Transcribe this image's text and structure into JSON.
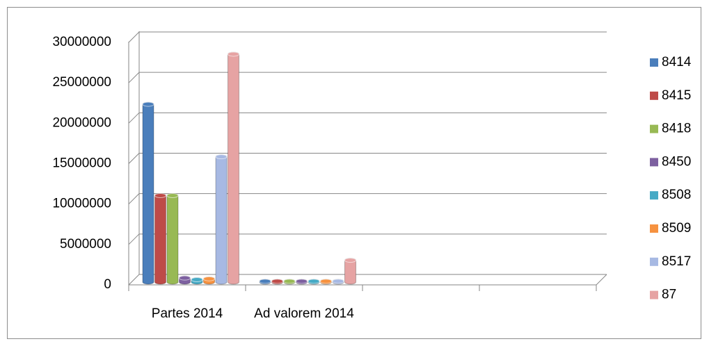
{
  "chart_data": {
    "type": "bar",
    "categories": [
      "Partes 2014",
      "Ad valorem 2014",
      null,
      null
    ],
    "series": [
      {
        "name": "8414",
        "color": "#4a7ebb",
        "values": [
          22000000,
          100000,
          null,
          null
        ]
      },
      {
        "name": "8415",
        "color": "#be4b48",
        "values": [
          10700000,
          100000,
          null,
          null
        ]
      },
      {
        "name": "8418",
        "color": "#98b954",
        "values": [
          10700000,
          100000,
          null,
          null
        ]
      },
      {
        "name": "8450",
        "color": "#7d60a0",
        "values": [
          500000,
          100000,
          null,
          null
        ]
      },
      {
        "name": "8508",
        "color": "#46aac5",
        "values": [
          300000,
          100000,
          null,
          null
        ]
      },
      {
        "name": "8509",
        "color": "#f69240",
        "values": [
          400000,
          100000,
          null,
          null
        ]
      },
      {
        "name": "8517",
        "color": "#a7b9e3",
        "values": [
          15500000,
          100000,
          null,
          null
        ]
      },
      {
        "name": "87",
        "color": "#e6a3a3",
        "values": [
          28200000,
          2700000,
          null,
          null
        ]
      }
    ],
    "ylim": [
      0,
      30000000
    ],
    "yticks": [
      0,
      5000000,
      10000000,
      15000000,
      20000000,
      25000000,
      30000000
    ],
    "grid": true,
    "legend": "right"
  }
}
